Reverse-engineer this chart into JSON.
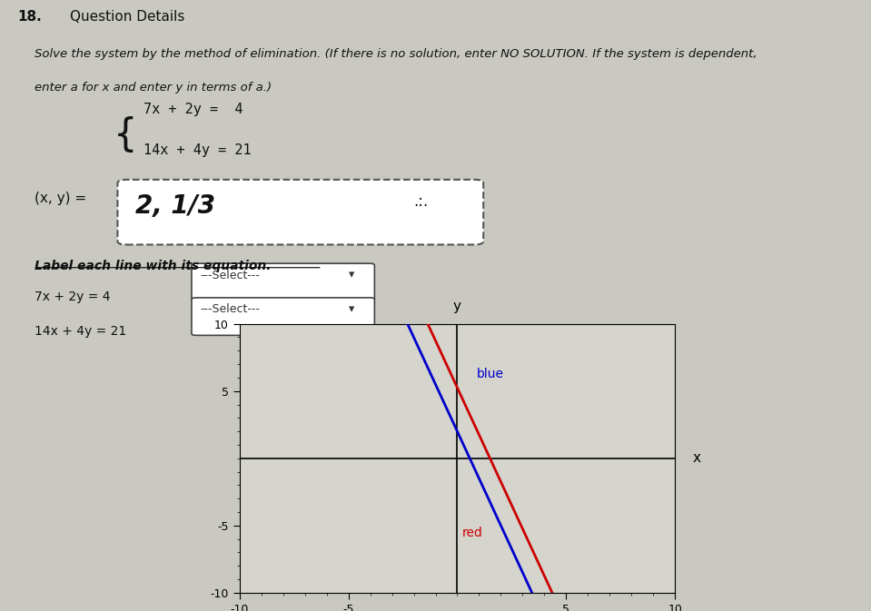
{
  "title_number": "18.",
  "title_label": "Question Details",
  "problem_text_line1": "Solve the system by the method of elimination. (If there is no solution, enter NO SOLUTION. If the system is dependent,",
  "problem_text_line2": "enter a for x and enter y in terms of a.)",
  "eq1_top": "7x + 2y =  4",
  "eq2_bottom": "14x + 4y = 21",
  "answer_label": "(x, y) =",
  "answer_written": "2, 1/3",
  "answer_dots": ".:.",
  "label_section_title": "Label each line with its equation.",
  "label_eq1": "7x + 2y = 4",
  "label_eq2": "14x + 4y = 21",
  "dropdown1": "---Select---",
  "dropdown2": "---Select---",
  "line1_slope": -3.5,
  "line1_intercept": 2.0,
  "line2_slope": -3.5,
  "line2_intercept": 5.25,
  "line1_color": "#0000cc",
  "line2_color": "#cc0000",
  "line1_label": "blue",
  "line2_label": "red",
  "xmin": -10,
  "xmax": 10,
  "ymin": -10,
  "ymax": 10,
  "page_background": "#c9c8c1",
  "text_color": "#111111",
  "graph_bg": "#d5d4cd"
}
